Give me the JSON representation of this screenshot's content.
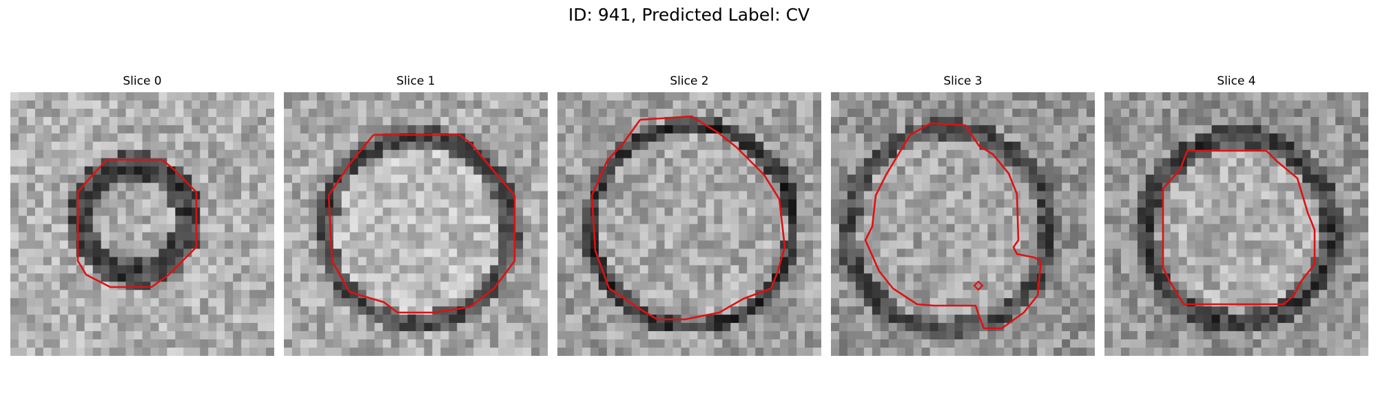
{
  "figure": {
    "title": "ID: 941, Predicted Label: CV"
  },
  "panels": [
    {
      "title": "Slice 0",
      "contour_color": "#e01010"
    },
    {
      "title": "Slice 1",
      "contour_color": "#e01010"
    },
    {
      "title": "Slice 2",
      "contour_color": "#e01010"
    },
    {
      "title": "Slice 3",
      "contour_color": "#e01010"
    },
    {
      "title": "Slice 4",
      "contour_color": "#e01010"
    }
  ]
}
